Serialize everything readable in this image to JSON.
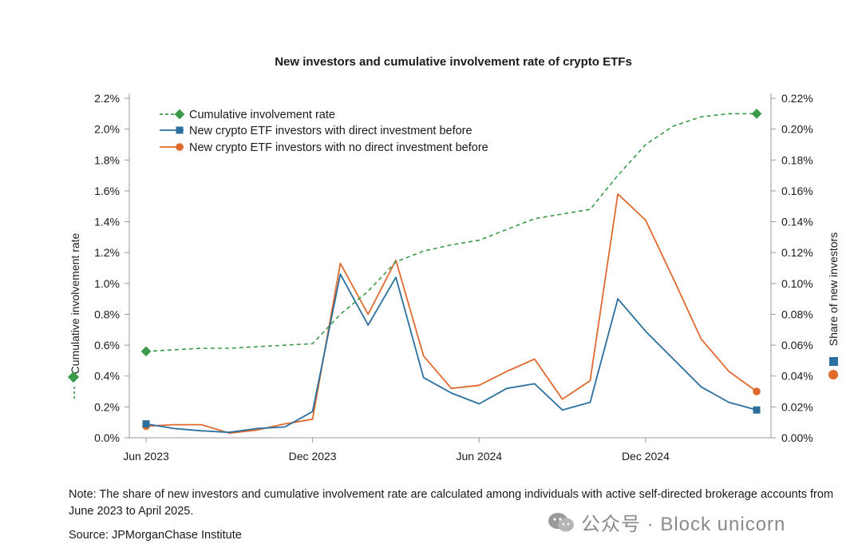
{
  "chart_data": {
    "type": "line",
    "title": "New investors and cumulative involvement rate of crypto ETFs",
    "x_tick_labels": [
      "Jun 2023",
      "Dec 2023",
      "Jun 2024",
      "Dec 2024"
    ],
    "x_tick_months": [
      0,
      6,
      12,
      18
    ],
    "x_range_months": [
      0,
      22
    ],
    "left_axis": {
      "label": "Cumulative involvement rate",
      "ylim": [
        0,
        2.2
      ],
      "ticks": [
        0,
        0.2,
        0.4,
        0.6,
        0.8,
        1.0,
        1.2,
        1.4,
        1.6,
        1.8,
        2.0,
        2.2
      ],
      "tick_labels": [
        "0.0%",
        "0.2%",
        "0.4%",
        "0.6%",
        "0.8%",
        "1.0%",
        "1.2%",
        "1.4%",
        "1.6%",
        "1.8%",
        "2.0%",
        "2.2%"
      ]
    },
    "right_axis": {
      "label": "Share of new investors",
      "ylim": [
        0,
        0.22
      ],
      "ticks": [
        0,
        0.02,
        0.04,
        0.06,
        0.08,
        0.1,
        0.12,
        0.14,
        0.16,
        0.18,
        0.2,
        0.22
      ],
      "tick_labels": [
        "0.00%",
        "0.02%",
        "0.04%",
        "0.06%",
        "0.08%",
        "0.10%",
        "0.12%",
        "0.14%",
        "0.16%",
        "0.18%",
        "0.20%",
        "0.22%"
      ]
    },
    "series": [
      {
        "name": "Cumulative involvement rate",
        "axis": "left",
        "color": "#3a9a4a",
        "style": "dashed",
        "marker": "diamond",
        "x": [
          0,
          1,
          2,
          3,
          4,
          5,
          6,
          7,
          8,
          9,
          10,
          11,
          12,
          13,
          14,
          15,
          16,
          17,
          18,
          19,
          20,
          21,
          22
        ],
        "values": [
          0.56,
          0.57,
          0.58,
          0.58,
          0.59,
          0.6,
          0.61,
          0.8,
          0.95,
          1.14,
          1.21,
          1.25,
          1.28,
          1.35,
          1.42,
          1.45,
          1.48,
          1.7,
          1.9,
          2.02,
          2.08,
          2.1,
          2.1
        ]
      },
      {
        "name": "New crypto ETF investors with direct investment before",
        "axis": "right",
        "color": "#2a6f9e",
        "style": "solid",
        "marker": "square",
        "x": [
          0,
          1,
          2,
          3,
          4,
          5,
          6,
          7,
          8,
          9,
          10,
          11,
          12,
          13,
          14,
          15,
          16,
          17,
          18,
          19,
          20,
          21,
          22
        ],
        "values": [
          0.009,
          0.006,
          0.0045,
          0.0035,
          0.006,
          0.007,
          0.017,
          0.106,
          0.073,
          0.104,
          0.039,
          0.029,
          0.022,
          0.032,
          0.035,
          0.018,
          0.023,
          0.09,
          0.069,
          0.051,
          0.033,
          0.023,
          0.018
        ]
      },
      {
        "name": "New crypto ETF investors with no direct investment before",
        "axis": "right",
        "color": "#e06a2e",
        "style": "solid",
        "marker": "circle",
        "x": [
          0,
          1,
          2,
          3,
          4,
          5,
          6,
          7,
          8,
          9,
          10,
          11,
          12,
          13,
          14,
          15,
          16,
          17,
          18,
          19,
          20,
          21,
          22
        ],
        "values": [
          0.0075,
          0.0085,
          0.0085,
          0.003,
          0.005,
          0.009,
          0.012,
          0.113,
          0.08,
          0.115,
          0.053,
          0.032,
          0.034,
          0.043,
          0.051,
          0.025,
          0.037,
          0.158,
          0.141,
          0.103,
          0.064,
          0.043,
          0.03
        ]
      }
    ],
    "legend_position": "top-left"
  },
  "note": "Note: The share of new investors and cumulative involvement rate are calculated among individuals with active self-directed brokerage accounts from June 2023 to April 2025.",
  "source": "Source: JPMorganChase Institute",
  "watermark": "公众号 · Block unicorn"
}
